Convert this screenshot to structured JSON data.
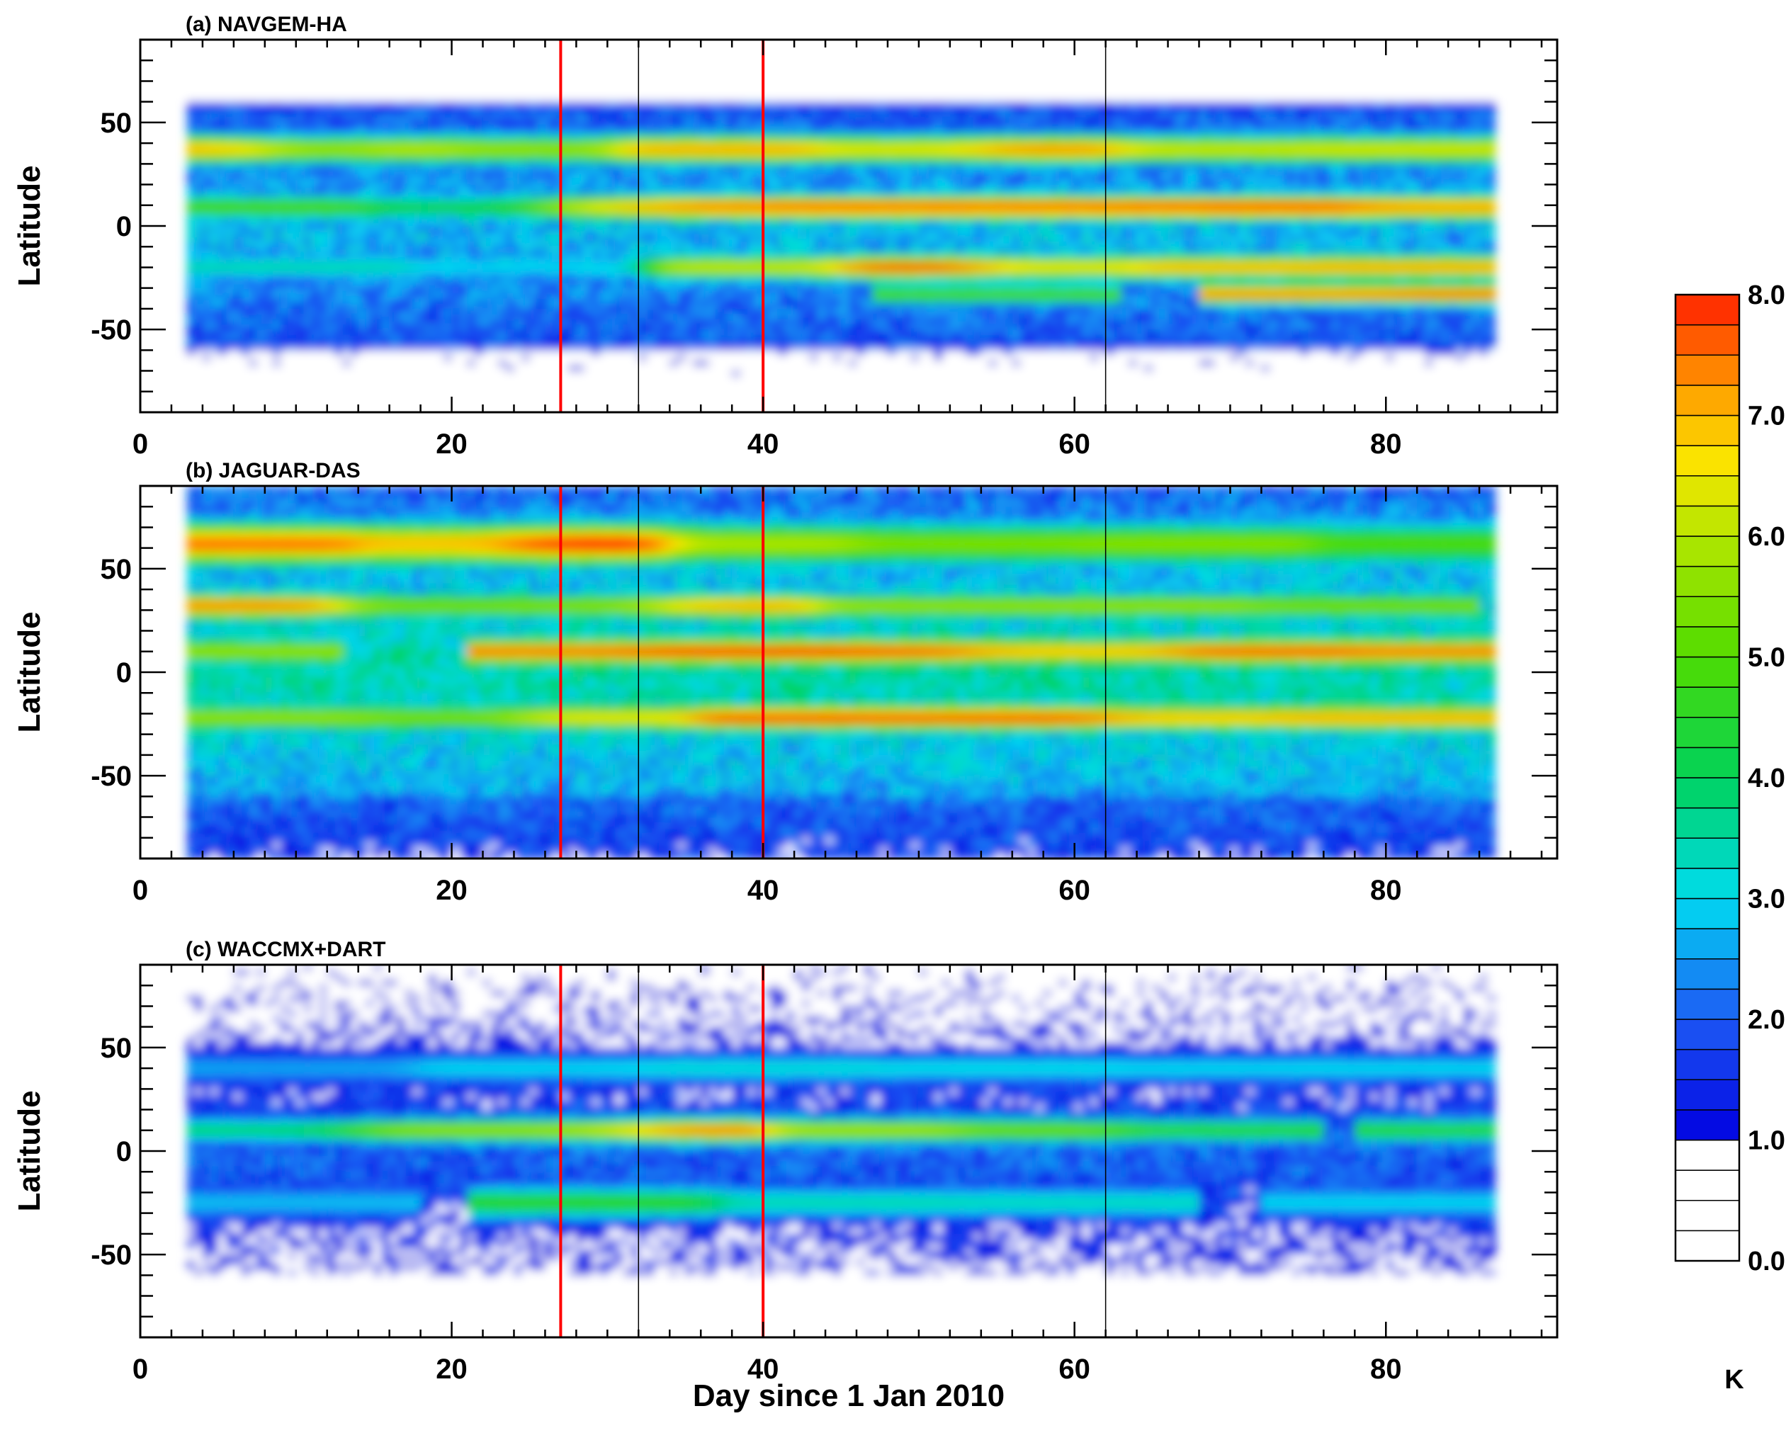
{
  "chart_data": {
    "type": "heatmap",
    "x_domain": [
      0,
      91
    ],
    "y_domain": [
      -90,
      90
    ],
    "data_x_range": [
      3,
      87
    ],
    "x_ticks": [
      0,
      20,
      40,
      60,
      80
    ],
    "y_ticks": [
      -50,
      0,
      50
    ],
    "xlabel": "Day since 1 Jan 2010",
    "ylabel": "Latitude",
    "panels": [
      {
        "title": "(a) NAVGEM-HA",
        "bands": [
          {
            "lat": 37,
            "width": 7,
            "peaks": [
              [
                6,
                7.2
              ],
              [
                11,
                5.4
              ],
              [
                16,
                6.3
              ],
              [
                24,
                5.8
              ],
              [
                37,
                7.2
              ],
              [
                50,
                6.5
              ],
              [
                58,
                7.4
              ],
              [
                68,
                6.3
              ],
              [
                81,
                6.4
              ]
            ]
          },
          {
            "lat": 9,
            "width": 6,
            "peaks": [
              [
                8,
                5.0
              ],
              [
                22,
                4.2
              ],
              [
                29,
                6.3
              ],
              [
                34,
                7.7
              ],
              [
                47,
                7.8
              ],
              [
                58,
                7.8
              ],
              [
                68,
                7.9
              ],
              [
                74,
                8.0
              ],
              [
                83,
                7.4
              ]
            ]
          },
          {
            "lat": -20,
            "width": 6,
            "peaks": [
              [
                10,
                3.5
              ],
              [
                25,
                3.0
              ],
              [
                40,
                6.3
              ],
              [
                50,
                7.8
              ],
              [
                58,
                6.6
              ],
              [
                70,
                7.1
              ],
              [
                80,
                7.2
              ]
            ]
          },
          {
            "lat": -33,
            "width": 5,
            "peaks": [
              [
                55,
                5.0
              ],
              [
                76,
                7.5
              ],
              [
                86,
                7.7
              ]
            ]
          }
        ]
      },
      {
        "title": "(b) JAGUAR-DAS",
        "bands": [
          {
            "lat": 62,
            "width": 10,
            "peaks": [
              [
                8,
                7.6
              ],
              [
                20,
                7.0
              ],
              [
                28,
                8.0
              ],
              [
                40,
                6.0
              ],
              [
                52,
                5.5
              ],
              [
                68,
                5.6
              ],
              [
                83,
                5.0
              ]
            ]
          },
          {
            "lat": 32,
            "width": 6,
            "peaks": [
              [
                8,
                7.5
              ],
              [
                18,
                5.5
              ],
              [
                30,
                5.6
              ],
              [
                37,
                7.2
              ],
              [
                50,
                5.8
              ],
              [
                65,
                5.8
              ],
              [
                78,
                5.5
              ]
            ]
          },
          {
            "lat": 10,
            "width": 6,
            "peaks": [
              [
                5,
                5.8
              ],
              [
                29,
                7.6
              ],
              [
                36,
                8.0
              ],
              [
                42,
                8.0
              ],
              [
                50,
                7.8
              ],
              [
                57,
                7.0
              ],
              [
                62,
                7.0
              ],
              [
                71,
                7.8
              ],
              [
                85,
                7.6
              ]
            ]
          },
          {
            "lat": -22,
            "width": 6,
            "peaks": [
              [
                10,
                5.8
              ],
              [
                20,
                5.5
              ],
              [
                29,
                6.6
              ],
              [
                42,
                7.9
              ],
              [
                51,
                7.8
              ],
              [
                58,
                7.9
              ],
              [
                66,
                7.0
              ],
              [
                80,
                7.2
              ]
            ]
          }
        ]
      },
      {
        "title": "(c) WACCMX+DART",
        "bands": [
          {
            "lat": 40,
            "width": 8,
            "peaks": [
              [
                10,
                2.6
              ],
              [
                25,
                3.0
              ],
              [
                40,
                3.2
              ],
              [
                55,
                3.1
              ],
              [
                70,
                3.0
              ],
              [
                80,
                3.0
              ]
            ]
          },
          {
            "lat": 10,
            "width": 6,
            "peaks": [
              [
                10,
                4.0
              ],
              [
                17,
                5.8
              ],
              [
                29,
                5.8
              ],
              [
                34,
                7.6
              ],
              [
                47,
                6.0
              ],
              [
                58,
                5.4
              ],
              [
                68,
                4.6
              ],
              [
                86,
                4.6
              ]
            ]
          },
          {
            "lat": -25,
            "width": 8,
            "peaks": [
              [
                10,
                2.8
              ],
              [
                29,
                4.6
              ],
              [
                45,
                3.5
              ],
              [
                60,
                3.4
              ],
              [
                80,
                3.0
              ]
            ]
          }
        ]
      }
    ],
    "vertical_lines": [
      {
        "day": 27,
        "color": "#ff0000"
      },
      {
        "day": 40,
        "color": "#ff0000"
      },
      {
        "day": 32,
        "color": "#000000"
      },
      {
        "day": 62,
        "color": "#000000"
      }
    ],
    "colorbar": {
      "min": 0,
      "max": 8,
      "step": 0.25,
      "tick_labels": [
        "0.0",
        "1.0",
        "2.0",
        "3.0",
        "4.0",
        "5.0",
        "6.0",
        "7.0",
        "8.0"
      ],
      "unit": "K"
    }
  }
}
